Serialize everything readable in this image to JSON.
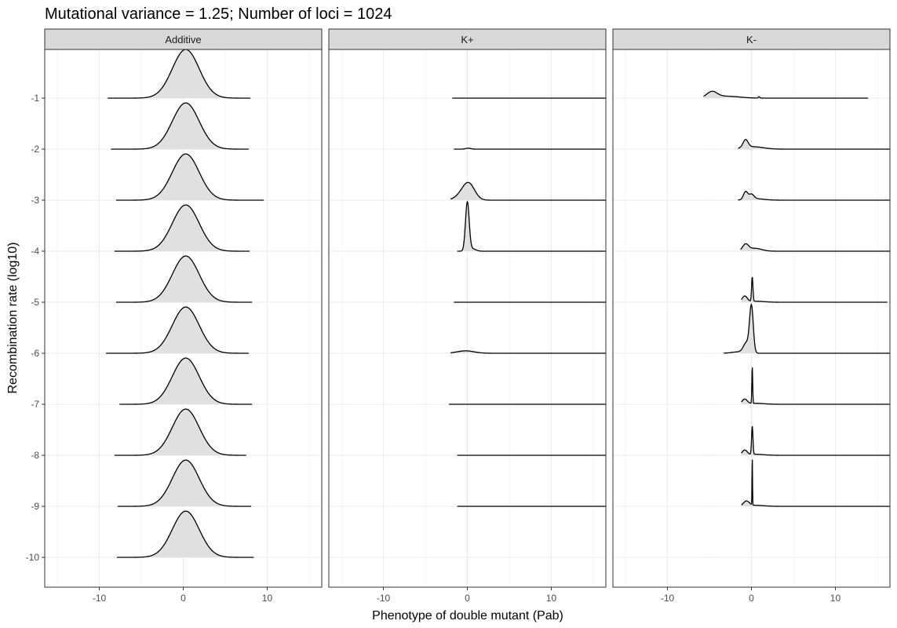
{
  "chart_data": {
    "type": "ridgeline-density",
    "title": "Mutational variance = 1.25; Number of loci = 1024",
    "xlabel": "Phenotype of double mutant (Pab)",
    "ylabel": "Recombination rate (log10)",
    "xlim": [
      -16.5,
      16.5
    ],
    "xticks": [
      -10,
      0,
      10
    ],
    "yticks": [
      -1,
      -2,
      -3,
      -4,
      -5,
      -6,
      -7,
      -8,
      -9,
      -10
    ],
    "ytick_labels": [
      "-1",
      "-2",
      "-3",
      "-4",
      "-5",
      "-6",
      "-7",
      "-8",
      "-9",
      "-10"
    ],
    "grid": true,
    "fill_color": "#e0e0e0",
    "line_color": "#000000",
    "strip_fill": "#d9d9d9",
    "panels": [
      {
        "label": "Additive",
        "series": [
          {
            "y": -1,
            "x_range": [
              -9.0,
              8.0
            ],
            "peaks": [
              [
                0.3,
                1.0,
                1.6
              ]
            ]
          },
          {
            "y": -2,
            "x_range": [
              -8.6,
              7.8
            ],
            "peaks": [
              [
                0.3,
                0.95,
                1.6
              ]
            ]
          },
          {
            "y": -3,
            "x_range": [
              -8.0,
              9.6
            ],
            "peaks": [
              [
                0.3,
                0.95,
                1.6
              ]
            ]
          },
          {
            "y": -4,
            "x_range": [
              -8.2,
              7.9
            ],
            "peaks": [
              [
                0.3,
                0.95,
                1.6
              ]
            ]
          },
          {
            "y": -5,
            "x_range": [
              -8.0,
              8.2
            ],
            "peaks": [
              [
                0.3,
                0.95,
                1.6
              ]
            ]
          },
          {
            "y": -6,
            "x_range": [
              -9.2,
              7.8
            ],
            "peaks": [
              [
                0.3,
                0.95,
                1.6
              ]
            ]
          },
          {
            "y": -7,
            "x_range": [
              -7.6,
              8.2
            ],
            "peaks": [
              [
                0.3,
                0.95,
                1.6
              ]
            ]
          },
          {
            "y": -8,
            "x_range": [
              -8.2,
              7.5
            ],
            "peaks": [
              [
                0.3,
                0.95,
                1.6
              ]
            ]
          },
          {
            "y": -9,
            "x_range": [
              -7.8,
              8.1
            ],
            "peaks": [
              [
                0.3,
                0.95,
                1.6
              ]
            ]
          },
          {
            "y": -10,
            "x_range": [
              -7.9,
              8.4
            ],
            "peaks": [
              [
                0.3,
                0.95,
                1.6
              ]
            ]
          }
        ]
      },
      {
        "label": "K+",
        "series": [
          {
            "y": -1,
            "x_range": [
              -1.8,
              16.5
            ],
            "peaks": []
          },
          {
            "y": -2,
            "x_range": [
              -1.6,
              16.5
            ],
            "peaks": [
              [
                0.1,
                0.02,
                0.3
              ]
            ]
          },
          {
            "y": -3,
            "x_range": [
              -2.0,
              16.5
            ],
            "peaks": [
              [
                0.2,
                0.3,
                0.7
              ],
              [
                -0.6,
                0.1,
                0.8
              ]
            ]
          },
          {
            "y": -4,
            "x_range": [
              -1.2,
              16.5
            ],
            "peaks": [
              [
                0.0,
                1.0,
                0.22
              ],
              [
                0.6,
                0.05,
                0.4
              ]
            ]
          },
          {
            "y": -5,
            "x_range": [
              -1.6,
              16.5
            ],
            "peaks": []
          },
          {
            "y": -6,
            "x_range": [
              -2.0,
              16.5
            ],
            "peaks": [
              [
                -0.2,
                0.05,
                1.0
              ]
            ]
          },
          {
            "y": -7,
            "x_range": [
              -2.2,
              16.5
            ],
            "peaks": []
          },
          {
            "y": -8,
            "x_range": [
              -1.2,
              16.5
            ],
            "peaks": []
          },
          {
            "y": -9,
            "x_range": [
              -1.2,
              16.5
            ],
            "peaks": []
          }
        ]
      },
      {
        "label": "K-",
        "series": [
          {
            "y": -1,
            "x_range": [
              -5.7,
              13.9
            ],
            "peaks": [
              [
                -4.7,
                0.12,
                0.6
              ],
              [
                -3.0,
                0.04,
                1.5
              ],
              [
                0.9,
                0.03,
                0.08
              ]
            ]
          },
          {
            "y": -2,
            "x_range": [
              -1.6,
              16.5
            ],
            "peaks": [
              [
                -0.7,
                0.16,
                0.3
              ],
              [
                0.2,
                0.05,
                1.2
              ]
            ]
          },
          {
            "y": -3,
            "x_range": [
              -1.6,
              16.5
            ],
            "peaks": [
              [
                -0.7,
                0.16,
                0.25
              ],
              [
                0.0,
                0.1,
                0.3
              ],
              [
                0.5,
                0.03,
                1.0
              ]
            ]
          },
          {
            "y": -4,
            "x_range": [
              -1.3,
              16.5
            ],
            "peaks": [
              [
                -0.7,
                0.13,
                0.35
              ],
              [
                0.4,
                0.06,
                0.8
              ]
            ]
          },
          {
            "y": -5,
            "x_range": [
              -1.2,
              16.2
            ],
            "peaks": [
              [
                0.1,
                0.5,
                0.08
              ],
              [
                -0.8,
                0.12,
                0.3
              ],
              [
                0.5,
                0.02,
                1.0
              ]
            ]
          },
          {
            "y": -6,
            "x_range": [
              -3.3,
              16.5
            ],
            "peaks": [
              [
                0.0,
                0.95,
                0.22
              ],
              [
                -0.6,
                0.2,
                0.35
              ],
              [
                -1.5,
                0.03,
                0.8
              ]
            ]
          },
          {
            "y": -7,
            "x_range": [
              -1.2,
              16.5
            ],
            "peaks": [
              [
                0.1,
                0.75,
                0.05
              ],
              [
                -0.8,
                0.1,
                0.3
              ],
              [
                0.5,
                0.02,
                1.0
              ]
            ]
          },
          {
            "y": -8,
            "x_range": [
              -1.2,
              16.5
            ],
            "peaks": [
              [
                0.1,
                0.58,
                0.08
              ],
              [
                -0.8,
                0.1,
                0.3
              ],
              [
                0.5,
                0.02,
                1.0
              ]
            ]
          },
          {
            "y": -9,
            "x_range": [
              -1.2,
              16.5
            ],
            "peaks": [
              [
                0.1,
                0.98,
                0.03
              ],
              [
                -0.6,
                0.1,
                0.35
              ],
              [
                0.5,
                0.02,
                1.0
              ]
            ]
          }
        ]
      }
    ]
  }
}
